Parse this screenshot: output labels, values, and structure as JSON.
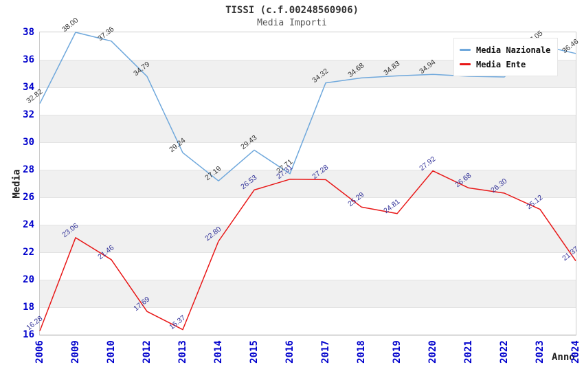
{
  "chart_data": {
    "type": "line",
    "title": "TISSI (c.f.00248560906)",
    "subtitle": "Media Importi",
    "xlabel": "Anno",
    "ylabel": "Media",
    "x": [
      "2006",
      "2009",
      "2010",
      "2012",
      "2013",
      "2014",
      "2015",
      "2016",
      "2017",
      "2018",
      "2019",
      "2020",
      "2021",
      "2022",
      "2023",
      "2024"
    ],
    "ylim": [
      16,
      38
    ],
    "yticks": [
      16,
      18,
      20,
      22,
      24,
      26,
      28,
      30,
      32,
      34,
      36,
      38
    ],
    "grid": "horizontal-bands",
    "legend_position": "top-right",
    "series": [
      {
        "name": "Media Nazionale",
        "color": "#6FA8DC",
        "label_color": "#333333",
        "values": [
          32.82,
          38.0,
          37.36,
          34.79,
          29.24,
          27.19,
          29.43,
          27.71,
          34.32,
          34.68,
          34.83,
          34.94,
          34.8,
          34.75,
          37.05,
          36.46
        ],
        "point_labels": [
          "32.82",
          "38.00",
          "37.36",
          "34.79",
          "29.24",
          "27.19",
          "29.43",
          "27.71",
          "34.32",
          "34.68",
          "34.83",
          "34.94",
          "",
          "",
          "37.05",
          "36.46"
        ]
      },
      {
        "name": "Media Ente",
        "color": "#E81717",
        "label_color": "#333399",
        "values": [
          16.28,
          23.06,
          21.46,
          17.69,
          16.37,
          22.8,
          26.53,
          27.31,
          27.28,
          25.29,
          24.81,
          27.92,
          26.68,
          26.3,
          25.12,
          21.37
        ],
        "point_labels": [
          "16.28",
          "23.06",
          "21.46",
          "17.69",
          "16.37",
          "22.80",
          "26.53",
          "27.31",
          "27.28",
          "25.29",
          "24.81",
          "27.92",
          "26.68",
          "26.30",
          "25.12",
          "21.37"
        ]
      }
    ]
  },
  "colors": {
    "axis_tick_text": "#0000CC",
    "band_white": "#FFFFFF",
    "band_gray": "#F0F0F0",
    "plot_border": "#CCCCCC",
    "title_text": "#333333",
    "subtitle_text": "#555555"
  }
}
